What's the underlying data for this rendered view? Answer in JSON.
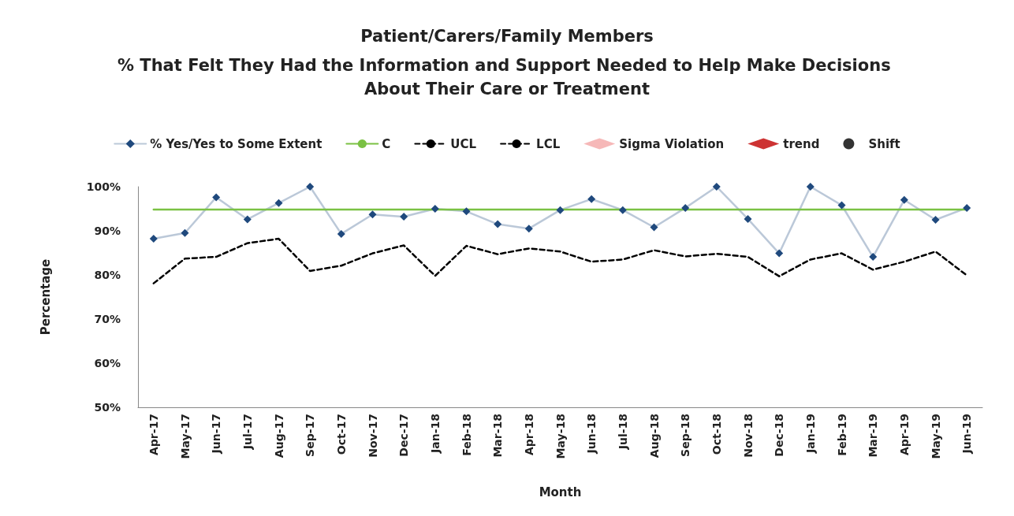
{
  "chart_data": {
    "type": "line",
    "title": "Patient/Carers/Family Members",
    "subtitle": "% That Felt They Had the Information and Support Needed to Help Make Decisions About Their Care or Treatment",
    "xlabel": "Month",
    "ylabel": "Percentage",
    "categories": [
      "Apr-17",
      "May-17",
      "Jun-17",
      "Jul-17",
      "Aug-17",
      "Sep-17",
      "Oct-17",
      "Nov-17",
      "Dec-17",
      "Jan-18",
      "Feb-18",
      "Mar-18",
      "Apr-18",
      "May-18",
      "Jun-18",
      "Jul-18",
      "Aug-18",
      "Sep-18",
      "Oct-18",
      "Nov-18",
      "Dec-18",
      "Jan-19",
      "Feb-19",
      "Mar-19",
      "Apr-19",
      "May-19",
      "Jun-19"
    ],
    "series": [
      {
        "name": "% Yes/Yes to Some Extent",
        "color": "#1f497d",
        "marker": "diamond",
        "line_style": "solid",
        "values": [
          88.2,
          89.5,
          97.6,
          92.6,
          96.3,
          100,
          89.3,
          93.7,
          93.2,
          95.0,
          94.4,
          91.5,
          90.5,
          94.7,
          97.2,
          94.7,
          90.8,
          95.2,
          100,
          92.7,
          84.9,
          100,
          95.8,
          84.1,
          97.0,
          92.5,
          95.2
        ]
      },
      {
        "name": "C",
        "color": "#7ac143",
        "marker": "none",
        "line_style": "solid",
        "values": [
          94.8,
          94.8,
          94.8,
          94.8,
          94.8,
          94.8,
          94.8,
          94.8,
          94.8,
          94.8,
          94.8,
          94.8,
          94.8,
          94.8,
          94.8,
          94.8,
          94.8,
          94.8,
          94.8,
          94.8,
          94.8,
          94.8,
          94.8,
          94.8,
          94.8,
          94.8,
          94.8
        ]
      },
      {
        "name": "UCL",
        "color": "#000000",
        "marker": "none",
        "line_style": "dashed",
        "values": [
          null,
          null,
          null,
          null,
          null,
          null,
          null,
          null,
          null,
          null,
          null,
          null,
          null,
          null,
          null,
          null,
          null,
          null,
          null,
          null,
          null,
          null,
          null,
          null,
          null,
          null,
          null
        ]
      },
      {
        "name": "LCL",
        "color": "#000000",
        "marker": "none",
        "line_style": "dashed",
        "values": [
          78.1,
          83.7,
          84.1,
          87.2,
          88.2,
          80.9,
          82.1,
          84.9,
          86.7,
          79.8,
          86.6,
          84.7,
          86.0,
          85.3,
          83.0,
          83.5,
          85.6,
          84.2,
          84.8,
          84.1,
          79.7,
          83.5,
          84.9,
          81.2,
          83.0,
          85.3,
          79.9
        ]
      },
      {
        "name": "Sigma Violation",
        "type": "scatter",
        "color": "#f4a6a6",
        "marker": "diamond",
        "values": [
          null,
          null,
          null,
          null,
          null,
          null,
          null,
          null,
          null,
          null,
          null,
          null,
          null,
          null,
          null,
          null,
          null,
          null,
          null,
          null,
          null,
          null,
          null,
          null,
          null,
          null,
          null
        ]
      },
      {
        "name": "trend",
        "type": "scatter",
        "color": "#c00000",
        "marker": "diamond",
        "values": [
          null,
          null,
          null,
          null,
          null,
          null,
          null,
          null,
          null,
          null,
          null,
          null,
          null,
          null,
          null,
          null,
          null,
          null,
          null,
          null,
          null,
          null,
          null,
          null,
          null,
          null,
          null
        ]
      },
      {
        "name": "Shift",
        "type": "scatter",
        "color": "#000000",
        "marker": "circle",
        "values": [
          null,
          null,
          null,
          null,
          null,
          null,
          null,
          null,
          null,
          null,
          null,
          null,
          null,
          null,
          null,
          null,
          null,
          null,
          null,
          null,
          null,
          null,
          null,
          null,
          null,
          null,
          null
        ]
      }
    ],
    "ylim": [
      50,
      100
    ],
    "yticks": [
      {
        "value": 50,
        "label": "50%"
      },
      {
        "value": 60,
        "label": "60%"
      },
      {
        "value": 70,
        "label": "70%"
      },
      {
        "value": 80,
        "label": "80%"
      },
      {
        "value": 90,
        "label": "90%"
      },
      {
        "value": 100,
        "label": "100%"
      }
    ],
    "grid": false,
    "legend": "top"
  }
}
